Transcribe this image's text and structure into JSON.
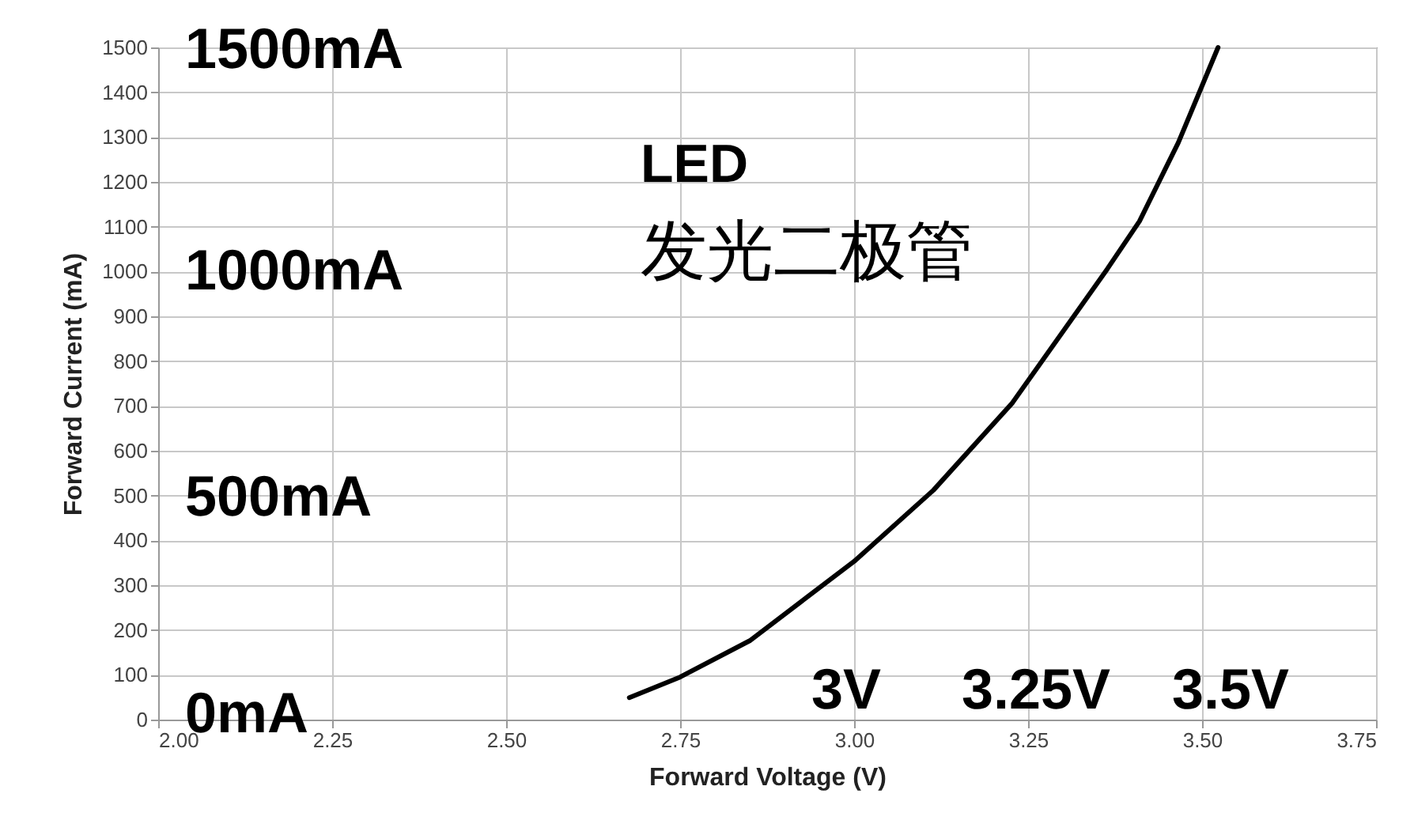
{
  "chart_data": {
    "type": "line",
    "xlabel": "Forward Voltage (V)",
    "ylabel": "Forward Current (mA)",
    "x": [
      2.677,
      2.75,
      2.85,
      3.0,
      3.114,
      3.227,
      3.364,
      3.41,
      3.466,
      3.523
    ],
    "series": [
      {
        "color": "#000000",
        "values": [
          49,
          95,
          176,
          353,
          512,
          706,
          1006,
          1112,
          1288,
          1500
        ]
      }
    ],
    "xlim": [
      2.0,
      3.75
    ],
    "xticks": [
      {
        "value": 2.0,
        "label": "2.00"
      },
      {
        "value": 2.25,
        "label": "2.25"
      },
      {
        "value": 2.5,
        "label": "2.50"
      },
      {
        "value": 2.75,
        "label": "2.75"
      },
      {
        "value": 3.0,
        "label": "3.00"
      },
      {
        "value": 3.25,
        "label": "3.25"
      },
      {
        "value": 3.5,
        "label": "3.50"
      },
      {
        "value": 3.75,
        "label": "3.75"
      }
    ],
    "ylim": [
      0,
      1500
    ],
    "yticks": [
      0,
      100,
      200,
      300,
      400,
      500,
      600,
      700,
      800,
      900,
      1000,
      1100,
      1200,
      1300,
      1400,
      1500
    ],
    "grid": true,
    "marker": "none",
    "line_style": "solid",
    "annotations": [
      "1500mA",
      "1000mA",
      "500mA",
      "0mA",
      "3V",
      "3.25V",
      "3.5V",
      "LED",
      "发光二极管"
    ]
  }
}
